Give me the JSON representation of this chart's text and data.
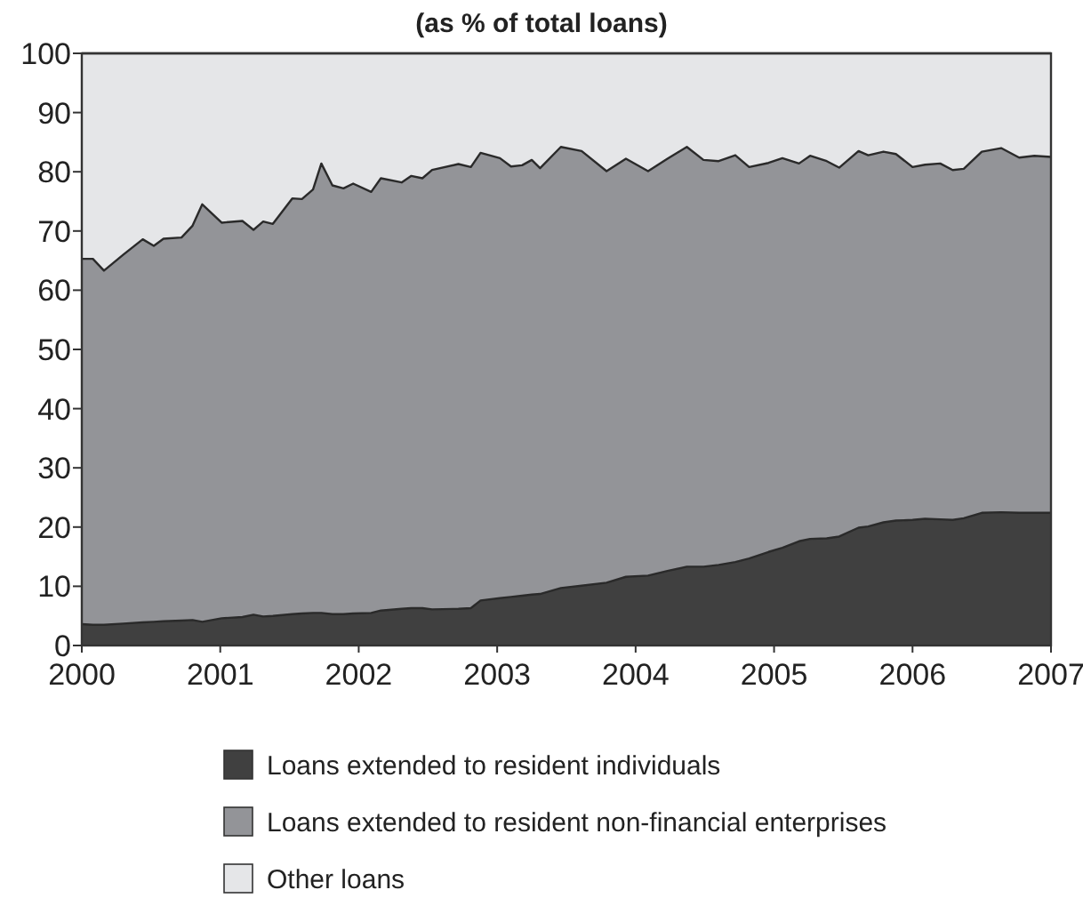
{
  "chart_data": {
    "type": "area",
    "stacked": true,
    "title": "(as % of total loans)",
    "x": [
      2000.0,
      2000.08,
      2000.16,
      2000.3,
      2000.44,
      2000.52,
      2000.59,
      2000.72,
      2000.8,
      2000.87,
      2001.01,
      2001.16,
      2001.24,
      2001.31,
      2001.38,
      2001.52,
      2001.59,
      2001.67,
      2001.73,
      2001.81,
      2001.89,
      2001.96,
      2002.09,
      2002.16,
      2002.31,
      2002.38,
      2002.46,
      2002.53,
      2002.72,
      2002.81,
      2002.88,
      2003.02,
      2003.1,
      2003.18,
      2003.25,
      2003.31,
      2003.46,
      2003.61,
      2003.79,
      2003.93,
      2004.09,
      2004.23,
      2004.37,
      2004.49,
      2004.6,
      2004.72,
      2004.82,
      2004.96,
      2005.06,
      2005.18,
      2005.26,
      2005.38,
      2005.47,
      2005.61,
      2005.68,
      2005.79,
      2005.88,
      2006.0,
      2006.09,
      2006.2,
      2006.29,
      2006.37,
      2006.5,
      2006.64,
      2006.77,
      2006.88,
      2007.0
    ],
    "series": [
      {
        "name": "Loans extended to resident individuals",
        "color": "#404040",
        "values": [
          3.6,
          3.5,
          3.5,
          3.7,
          3.9,
          4.0,
          4.1,
          4.2,
          4.3,
          4.0,
          4.6,
          4.8,
          5.2,
          4.9,
          5.0,
          5.3,
          5.4,
          5.5,
          5.5,
          5.3,
          5.3,
          5.4,
          5.5,
          5.9,
          6.2,
          6.3,
          6.3,
          6.1,
          6.2,
          6.3,
          7.6,
          8.0,
          8.2,
          8.4,
          8.6,
          8.7,
          9.7,
          10.1,
          10.6,
          11.6,
          11.8,
          12.6,
          13.3,
          13.3,
          13.6,
          14.1,
          14.7,
          15.8,
          16.5,
          17.6,
          18.0,
          18.1,
          18.4,
          19.9,
          20.1,
          20.8,
          21.1,
          21.2,
          21.4,
          21.3,
          21.2,
          21.5,
          22.4,
          22.5,
          22.4,
          22.4,
          22.4
        ]
      },
      {
        "name": "Loans extended to resident non-financial enterprises",
        "color": "#939498",
        "values": [
          61.7,
          61.8,
          59.8,
          62.3,
          64.7,
          63.5,
          64.6,
          64.7,
          66.6,
          70.5,
          66.8,
          66.9,
          65.0,
          66.7,
          66.2,
          70.2,
          70.0,
          71.5,
          75.9,
          72.4,
          71.9,
          72.6,
          71.1,
          73.0,
          72.0,
          73.0,
          72.6,
          74.2,
          75.1,
          74.5,
          75.6,
          74.3,
          72.7,
          72.7,
          73.4,
          71.9,
          74.5,
          73.4,
          69.5,
          70.6,
          68.3,
          69.6,
          70.9,
          68.7,
          68.2,
          68.7,
          66.1,
          65.7,
          65.8,
          63.8,
          64.7,
          63.7,
          62.3,
          63.6,
          62.7,
          62.6,
          61.9,
          59.6,
          59.8,
          60.1,
          59.1,
          59.0,
          61.0,
          61.5,
          60.0,
          60.3,
          60.1
        ]
      },
      {
        "name": "Other loans",
        "color": "#e5e6e8",
        "values": [
          34.7,
          34.7,
          36.7,
          34.0,
          31.4,
          32.5,
          31.3,
          31.1,
          29.1,
          25.5,
          28.6,
          28.3,
          29.8,
          28.4,
          28.8,
          24.5,
          24.6,
          23.0,
          18.6,
          22.3,
          22.8,
          22.0,
          23.4,
          21.1,
          21.8,
          20.7,
          21.1,
          19.7,
          18.7,
          19.2,
          16.8,
          17.7,
          19.1,
          18.9,
          18.0,
          19.4,
          15.8,
          16.5,
          19.9,
          17.8,
          19.9,
          17.8,
          15.8,
          18.0,
          18.2,
          17.2,
          19.2,
          18.5,
          17.7,
          18.6,
          17.3,
          18.2,
          19.3,
          16.5,
          17.2,
          16.6,
          17.0,
          19.2,
          18.8,
          18.6,
          19.7,
          19.5,
          16.6,
          16.0,
          17.6,
          17.3,
          17.5
        ]
      }
    ],
    "xlim": [
      2000,
      2007
    ],
    "xticks": [
      2000,
      2001,
      2002,
      2003,
      2004,
      2005,
      2006,
      2007
    ],
    "ylim": [
      0,
      100
    ],
    "yticks": [
      0,
      10,
      20,
      30,
      40,
      50,
      60,
      70,
      80,
      90,
      100
    ],
    "legend": "bottom",
    "grid": false
  }
}
